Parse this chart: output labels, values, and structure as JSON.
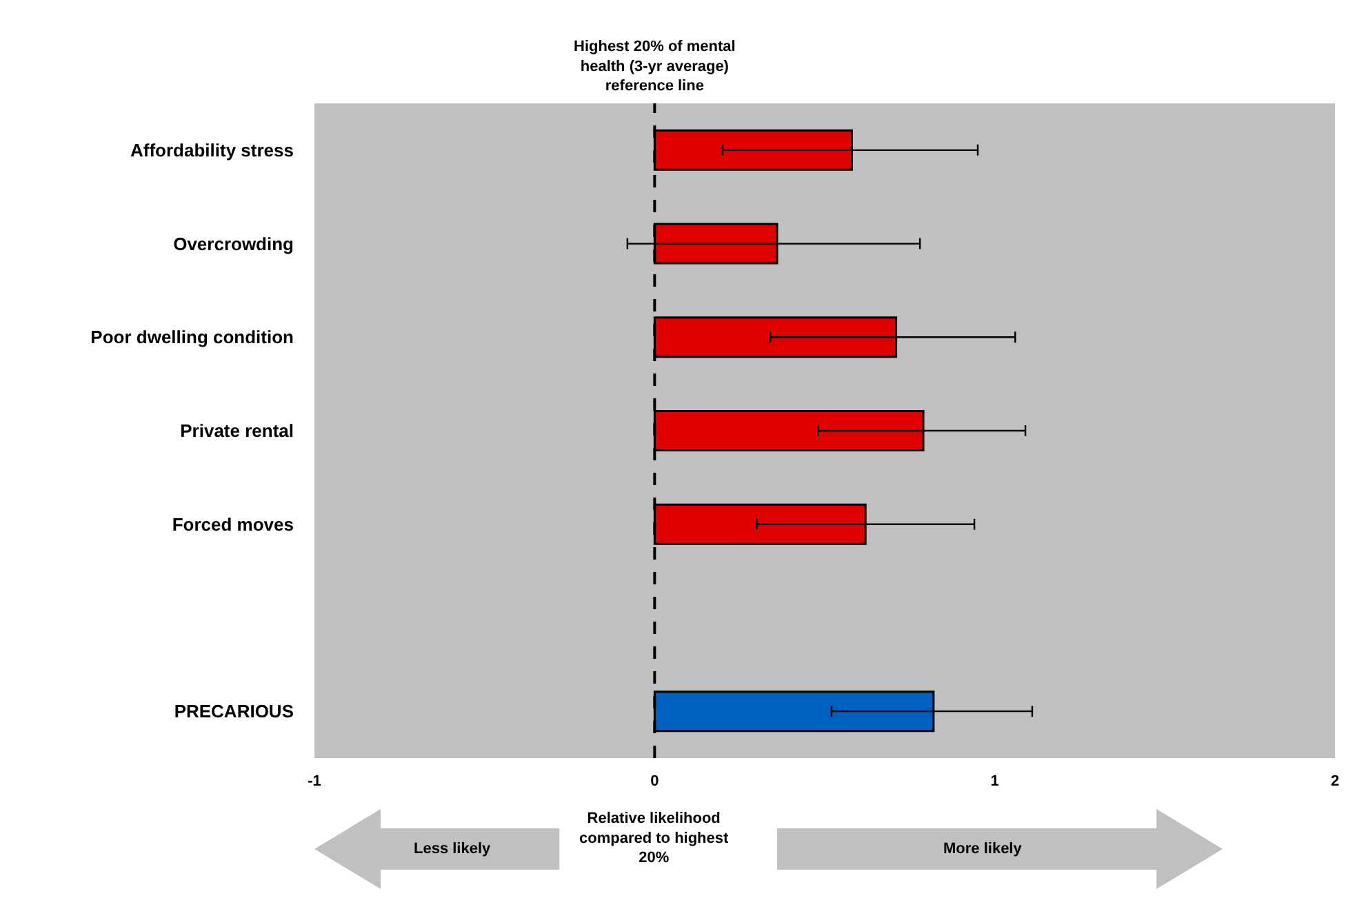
{
  "chart_data": {
    "type": "bar",
    "orientation": "horizontal",
    "categories": [
      "Affordability stress",
      "Overcrowding",
      "Poor dwelling condition",
      "Private rental",
      "Forced moves",
      null,
      "PRECARIOUS"
    ],
    "values": [
      0.58,
      0.36,
      0.71,
      0.79,
      0.62,
      null,
      0.82
    ],
    "colors": [
      "#e00000",
      "#e00000",
      "#e00000",
      "#e00000",
      "#e00000",
      "#e00000",
      "#0060c0"
    ],
    "errors": [
      [
        0.2,
        0.95
      ],
      [
        -0.08,
        0.78
      ],
      [
        0.34,
        1.06
      ],
      [
        0.48,
        1.09
      ],
      [
        0.3,
        0.94
      ],
      null,
      [
        0.52,
        1.11
      ]
    ],
    "xlim": [
      -1,
      2
    ],
    "xticks": [
      -1,
      0,
      1,
      2
    ],
    "xlabel": "Relative likelihood compared to highest 20%",
    "ref_lines": [
      {
        "axis": "x",
        "value": 0,
        "label": "Highest 20% of mental health (3-yr average) reference line",
        "color": "#000000",
        "line_style": "dashed"
      }
    ],
    "annotations": [
      "Less likely",
      "More likely"
    ],
    "grid": false
  }
}
